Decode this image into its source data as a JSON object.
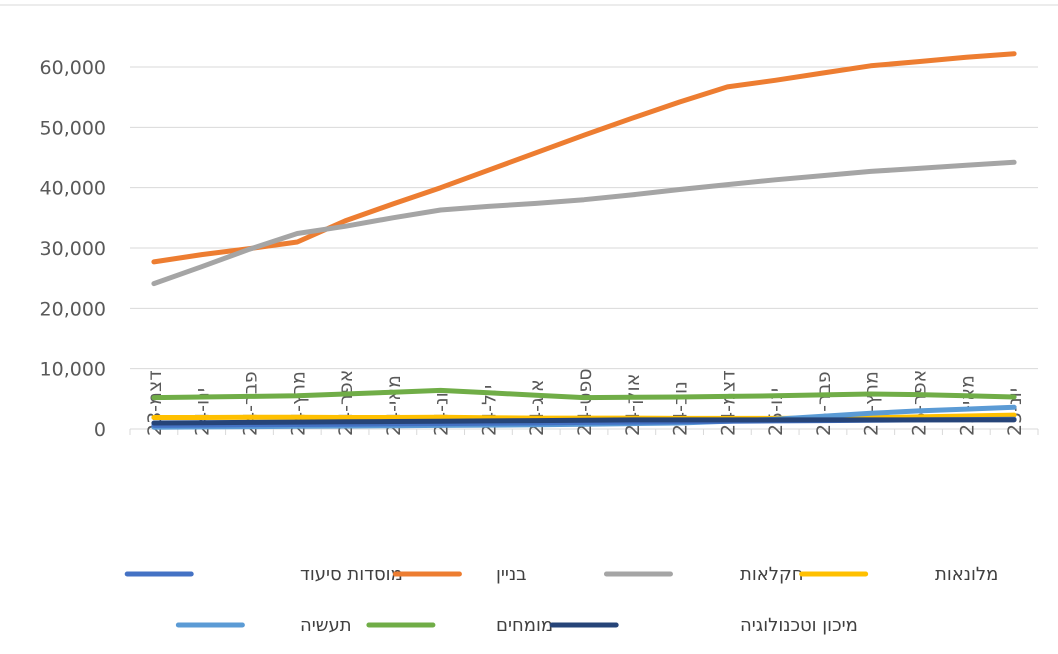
{
  "chart_data": {
    "type": "line",
    "title": "",
    "xlabel": "",
    "ylabel": "",
    "ylim": [
      0,
      60000
    ],
    "yticks": [
      0,
      10000,
      20000,
      30000,
      40000,
      50000,
      60000
    ],
    "ytick_labels": [
      "0",
      "10,000",
      "20,000",
      "30,000",
      "40,000",
      "50,000",
      "60,000"
    ],
    "grid": true,
    "legend_position": "bottom",
    "categories": [
      "דצמ-23",
      "ינו-24",
      "פבר-24",
      "מרץ-24",
      "אפר-24",
      "מאי-24",
      "יונ-24",
      "יול-24",
      "אוג-24",
      "ספט-24",
      "אוק-24",
      "נוב-24",
      "דצמ-24",
      "ינו-25",
      "פבר-25",
      "מרץ-25",
      "אפר-25",
      "מאי-25",
      "יונ-25"
    ],
    "series": [
      {
        "name": "מוסדות סיעוד",
        "color": "#4472C4",
        "values": [
          600,
          650,
          700,
          750,
          800,
          850,
          900,
          950,
          1000,
          1100,
          1150,
          1200,
          1300,
          1350,
          1400,
          1450,
          1500,
          1550,
          1600
        ]
      },
      {
        "name": "בניין",
        "color": "#ED7D31",
        "values": [
          27700,
          28900,
          29900,
          31000,
          34500,
          37300,
          40000,
          42900,
          45800,
          48700,
          51500,
          54200,
          56700,
          57800,
          59000,
          60200,
          60900,
          61600,
          62200
        ]
      },
      {
        "name": "חקלאות",
        "color": "#A5A5A5",
        "values": [
          24100,
          26900,
          29800,
          32400,
          33600,
          35000,
          36300,
          36900,
          37400,
          38000,
          38800,
          39700,
          40500,
          41300,
          42000,
          42700,
          43200,
          43700,
          44200
        ]
      },
      {
        "name": "מלונאות",
        "color": "#FFC000",
        "values": [
          1900,
          1900,
          1950,
          1950,
          1900,
          1900,
          1950,
          1850,
          1800,
          1800,
          1800,
          1750,
          1750,
          1750,
          1800,
          1850,
          2000,
          2150,
          2300
        ]
      },
      {
        "name": "תעשיה",
        "color": "#5B9BD5",
        "values": [
          300,
          350,
          400,
          450,
          500,
          550,
          600,
          650,
          700,
          800,
          900,
          1000,
          1300,
          1600,
          2100,
          2600,
          3000,
          3300,
          3600
        ]
      },
      {
        "name": "מומחים",
        "color": "#70AD47",
        "values": [
          5200,
          5300,
          5400,
          5500,
          5800,
          6100,
          6400,
          6000,
          5600,
          5200,
          5250,
          5300,
          5400,
          5500,
          5650,
          5800,
          5700,
          5500,
          5300
        ]
      },
      {
        "name": "מיכון וטכנולוגיה",
        "color": "#264478",
        "values": [
          1000,
          1050,
          1100,
          1150,
          1200,
          1250,
          1300,
          1350,
          1400,
          1450,
          1500,
          1500,
          1500,
          1500,
          1500,
          1500,
          1500,
          1500,
          1500
        ]
      }
    ],
    "legend_rows": [
      [
        "מוסדות סיעוד",
        "בניין",
        "חקלאות",
        "מלונאות"
      ],
      [
        "תעשיה",
        "מומחים",
        "מיכון וטכנולוגיה"
      ]
    ]
  }
}
